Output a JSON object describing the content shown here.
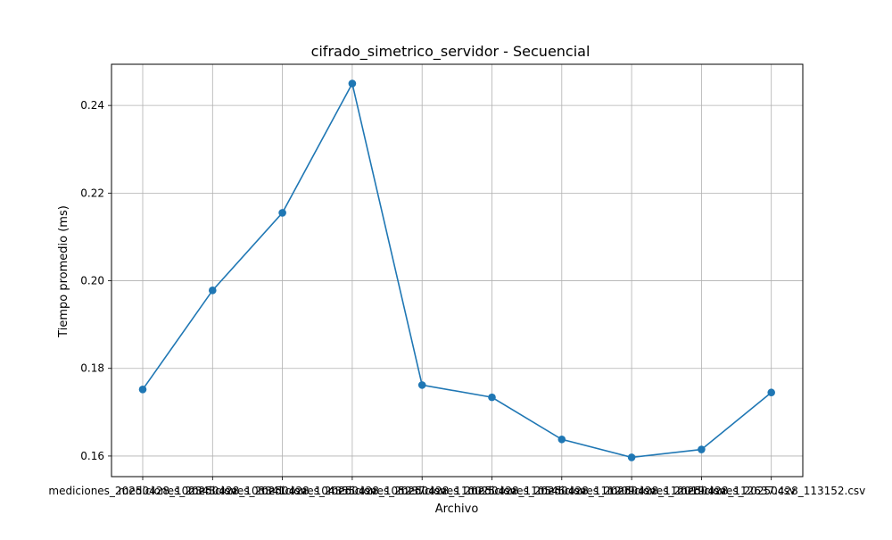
{
  "chart_data": {
    "type": "line",
    "title": "cifrado_simetrico_servidor - Secuencial",
    "xlabel": "Archivo",
    "ylabel": "Tiempo promedio (ms)",
    "categories": [
      "mediciones_20250428_102343.csv",
      "mediciones_20250428_103341.csv",
      "mediciones_20250428_104355.csv",
      "mediciones_20250428_105237.csv",
      "mediciones_20250428_110025.csv",
      "mediciones_20250428_110546.csv",
      "mediciones_20250428_111209.csv",
      "mediciones_20250428_112019.csv",
      "mediciones_20250428_112637.csv",
      "mediciones_20250428_113152.csv"
    ],
    "values": [
      0.1752,
      0.1978,
      0.2155,
      0.245,
      0.1762,
      0.1734,
      0.1638,
      0.1597,
      0.1615,
      0.1745
    ],
    "ylim": [
      0.1553,
      0.2494
    ],
    "yticks": [
      "0.16",
      "0.18",
      "0.20",
      "0.22",
      "0.24"
    ],
    "ytick_values": [
      0.16,
      0.18,
      0.2,
      0.22,
      0.24
    ],
    "grid": true,
    "marker": "circle",
    "colors": {
      "line": "#1f77b4",
      "grid": "#b0b0b0"
    }
  }
}
